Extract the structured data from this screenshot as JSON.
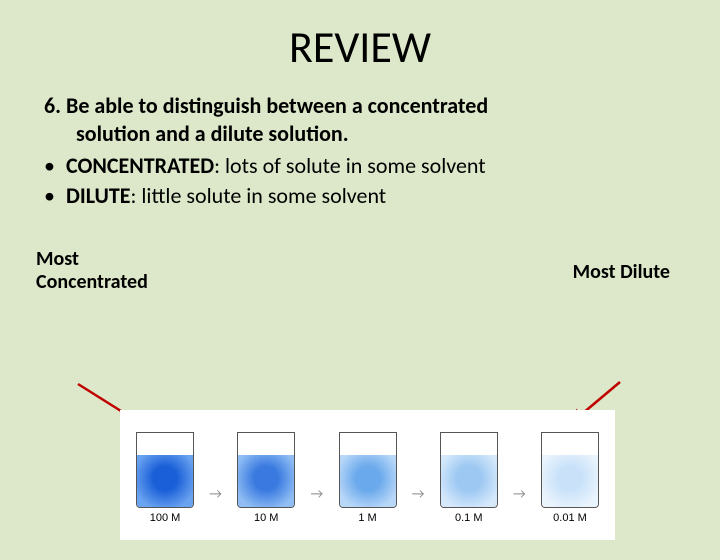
{
  "title": "REVIEW",
  "objective": {
    "line1": "6. Be able to distinguish between a concentrated",
    "line2": "solution and a dilute solution."
  },
  "bullets": [
    {
      "term": "CONCENTRATED",
      "after_term": ":  lots of solute in some solvent"
    },
    {
      "term": "DILUTE",
      "after_term": ": little solute in some solvent"
    }
  ],
  "labels": {
    "left_line1": "Most",
    "left_line2": "Concentrated",
    "right": "Most Dilute"
  },
  "diagram": {
    "background": "#ffffff",
    "beaker_border": "#555555",
    "arrow_color": "#8a8a8a",
    "pointer_color": "#c00000",
    "beakers": [
      {
        "conc_label": "100 M",
        "fill": "#1a5fd8",
        "gradient_edge": "#6aa3f0"
      },
      {
        "conc_label": "10 M",
        "fill": "#3a7ae0",
        "gradient_edge": "#8fbdf4"
      },
      {
        "conc_label": "1 M",
        "fill": "#6aa9ec",
        "gradient_edge": "#b9d8f8"
      },
      {
        "conc_label": "0.1 M",
        "fill": "#9cc8f2",
        "gradient_edge": "#d6e9fb"
      },
      {
        "conc_label": "0.01 M",
        "fill": "#c9e2f9",
        "gradient_edge": "#eaf4fd"
      }
    ]
  }
}
